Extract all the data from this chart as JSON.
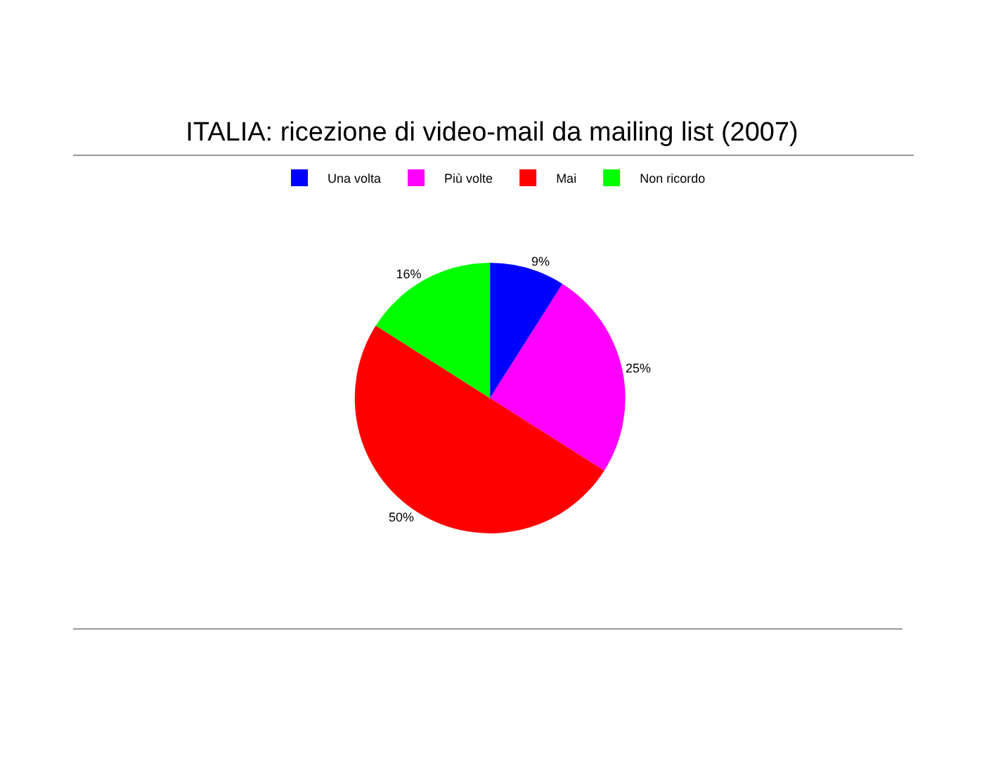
{
  "chart_data": {
    "type": "pie",
    "title": "ITALIA: ricezione di video-mail da mailing list (2007)",
    "categories": [
      "Una volta",
      "Più volte",
      "Mai",
      "Non ricordo"
    ],
    "values": [
      9,
      25,
      50,
      16
    ],
    "colors": [
      "#0000ff",
      "#ff00ff",
      "#ff0000",
      "#00ff00"
    ],
    "value_labels": [
      "9%",
      "25%",
      "50%",
      "16%"
    ],
    "legend": "top"
  }
}
